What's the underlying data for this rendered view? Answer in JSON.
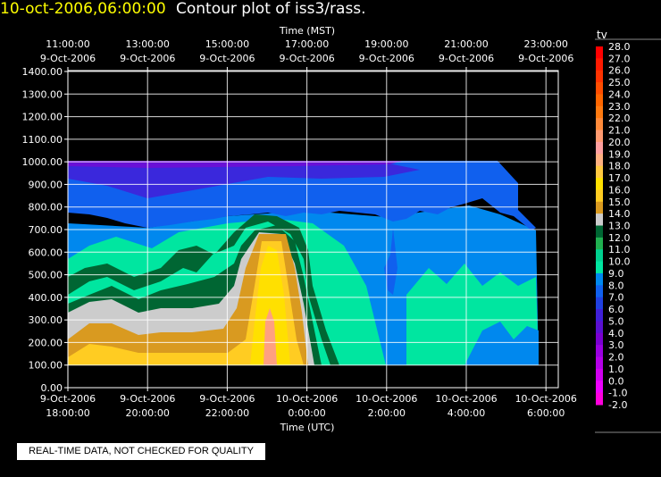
{
  "header": {
    "datetime": "10-oct-2006,06:00:00",
    "title": "Contour plot of iss3/rass."
  },
  "quality_note": "REAL-TIME DATA, NOT CHECKED FOR QUALITY",
  "colors": {
    "background": "#000000",
    "foreground": "#ffffff",
    "datetime": "#ffff00"
  },
  "chart_data": {
    "type": "heatmap",
    "title": "",
    "top_axis_label": "Time (MST)",
    "top_ticks": [
      {
        "time": "11:00:00",
        "date": "9-Oct-2006"
      },
      {
        "time": "13:00:00",
        "date": "9-Oct-2006"
      },
      {
        "time": "15:00:00",
        "date": "9-Oct-2006"
      },
      {
        "time": "17:00:00",
        "date": "9-Oct-2006"
      },
      {
        "time": "19:00:00",
        "date": "9-Oct-2006"
      },
      {
        "time": "21:00:00",
        "date": "9-Oct-2006"
      },
      {
        "time": "23:00:00",
        "date": "9-Oct-2006"
      }
    ],
    "xlabel": "Time (UTC)",
    "bottom_ticks": [
      {
        "date": "9-Oct-2006",
        "time": "18:00:00"
      },
      {
        "date": "9-Oct-2006",
        "time": "20:00:00"
      },
      {
        "date": "9-Oct-2006",
        "time": "22:00:00"
      },
      {
        "date": "10-Oct-2006",
        "time": "0:00:00"
      },
      {
        "date": "10-Oct-2006",
        "time": "2:00:00"
      },
      {
        "date": "10-Oct-2006",
        "time": "4:00:00"
      },
      {
        "date": "10-Oct-2006",
        "time": "6:00:00"
      }
    ],
    "x_hours_utc": [
      18,
      20,
      22,
      24,
      26,
      28,
      30
    ],
    "xlim_hours_utc": [
      18,
      30.5
    ],
    "ylabel": "",
    "y_ticks": [
      "0.00",
      "100.00",
      "200.00",
      "300.00",
      "400.00",
      "500.00",
      "600.00",
      "700.00",
      "800.00",
      "900.00",
      "1000.00",
      "1100.00",
      "1200.00",
      "1300.00",
      "1400.00"
    ],
    "ylim": [
      0,
      1400
    ],
    "grid": true,
    "colorbar": {
      "label": "tv",
      "levels": [
        "28.0",
        "27.0",
        "26.0",
        "25.0",
        "24.0",
        "23.0",
        "22.0",
        "21.0",
        "20.0",
        "19.0",
        "18.0",
        "17.0",
        "16.0",
        "15.0",
        "14.0",
        "13.0",
        "12.0",
        "11.0",
        "10.0",
        "9.0",
        "8.0",
        "7.0",
        "6.0",
        "5.0",
        "4.0",
        "3.0",
        "2.0",
        "1.0",
        "0.0",
        "-1.0",
        "-2.0"
      ],
      "colors": [
        "#ff0000",
        "#ff1a00",
        "#ff3300",
        "#ff4d00",
        "#ff6600",
        "#ff7a10",
        "#ff8a3a",
        "#ff9a70",
        "#ff9f9f",
        "#ffb080",
        "#ffc840",
        "#ffe000",
        "#ffcc22",
        "#d99a20",
        "#cccccc",
        "#006633",
        "#20b050",
        "#00d090",
        "#00e6a0",
        "#0088ee",
        "#1060ee",
        "#2040e0",
        "#4020d8",
        "#5a10d0",
        "#7a00d0",
        "#9a00e0",
        "#b400e8",
        "#d000f0",
        "#ee00ff",
        "#ff00dd"
      ]
    },
    "fields": [
      {
        "value": "8.0",
        "region": "upper layer, 18:00-30:00 UTC, ~760-1000 (top edge 1000)"
      },
      {
        "value": "5.0",
        "region": "narrow band at 1000, 18:00-26:00 UTC"
      },
      {
        "value": "9.0",
        "region": "600-800, 18:00-25:30 UTC; 100-700 after 26:00 UTC"
      },
      {
        "value": "11.0",
        "region": "300-650, 21:00-26:00 UTC"
      },
      {
        "value": "13.0",
        "region": "ridge bands 400-740 around 22:00-24:00 UTC"
      },
      {
        "value": "14.0",
        "region": "band 300-450, 18:00-22:00 UTC"
      },
      {
        "value": "15.0",
        "region": "100-300, 18:00-22:00 UTC"
      },
      {
        "value": "17.0",
        "region": "100-700 plume, 22:30-24:00 UTC"
      },
      {
        "value": "19.0",
        "region": "100-280 core, ~23:00 UTC"
      }
    ]
  }
}
